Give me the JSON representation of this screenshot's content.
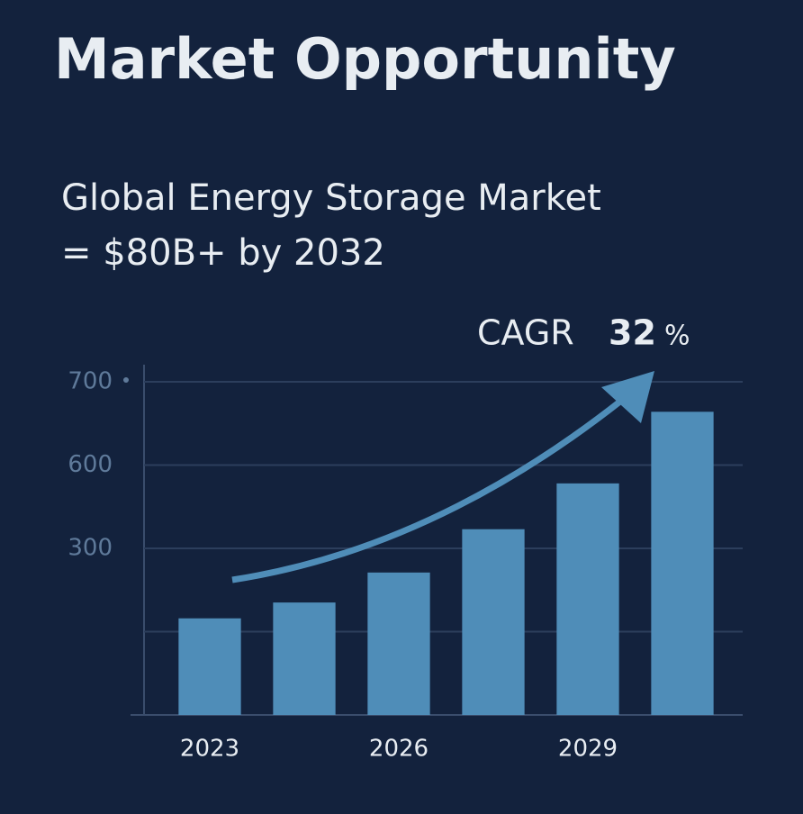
{
  "chart_data": {
    "type": "bar",
    "title": "Market Opportunity",
    "subtitle": [
      "Global Energy Storage Market",
      "= $80B+ by 2032"
    ],
    "annotation": {
      "label": "CAGR",
      "value": "32",
      "unit": "%"
    },
    "categories": [
      "2023",
      null,
      "2026",
      null,
      "2029",
      null
    ],
    "values": [
      1.16,
      1.35,
      1.71,
      2.23,
      2.78,
      3.64
    ],
    "color": "#4f8db8",
    "ylim": [
      0,
      4
    ],
    "yticks": [
      {
        "value": 1,
        "label": null
      },
      {
        "value": 2,
        "label": "300"
      },
      {
        "value": 3,
        "label": "600"
      },
      {
        "value": 4,
        "label": "700"
      }
    ],
    "grid": true
  }
}
